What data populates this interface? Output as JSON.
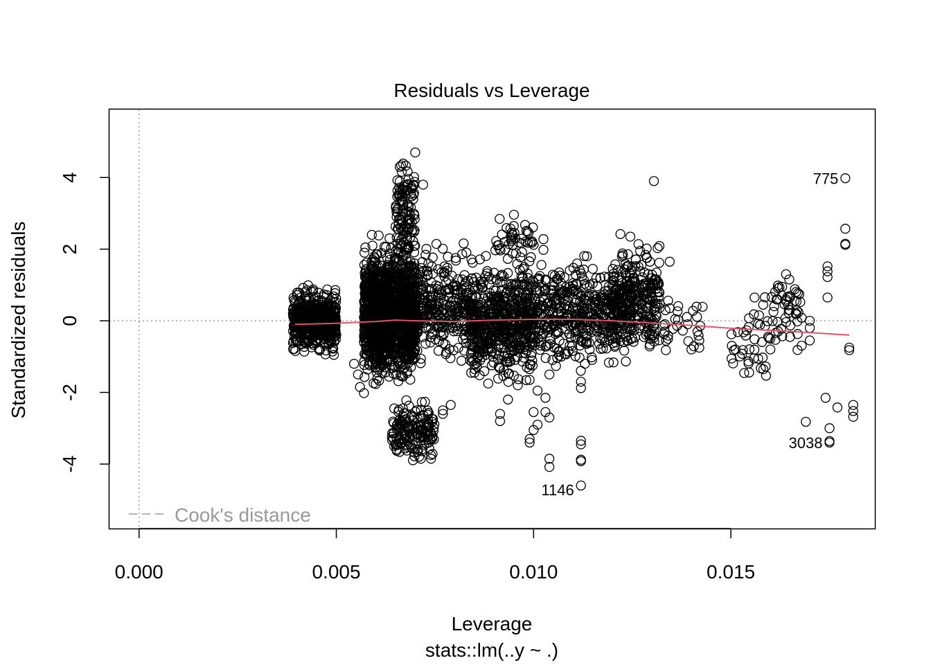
{
  "chart_data": {
    "type": "scatter",
    "title": "Residuals vs Leverage",
    "xlabel": "Leverage",
    "subtitle": "stats::lm(..y ~ .)",
    "ylabel": "Standardized residuals",
    "xlim": [
      -0.00075,
      0.01865
    ],
    "ylim": [
      -5.8,
      5.9
    ],
    "x_ticks": [
      0.0,
      0.005,
      0.01,
      0.015
    ],
    "x_tick_labels": [
      "0.000",
      "0.005",
      "0.010",
      "0.015"
    ],
    "y_ticks": [
      -4,
      -2,
      0,
      2,
      4
    ],
    "y_tick_labels": [
      "-4",
      "-2",
      "0",
      "2",
      "4"
    ],
    "legend": {
      "label": "Cook's distance",
      "position": "bottom-left",
      "color": "#999999"
    },
    "colors": {
      "points": "#000000",
      "smooth": "#DF536B",
      "reference": "#999999"
    },
    "clusters": [
      {
        "x": [
          0.0039,
          0.005
        ],
        "ymin": -1.5,
        "ymax": 1.5,
        "n": 520,
        "sd": 0.55
      },
      {
        "x": [
          0.0057,
          0.007
        ],
        "ymin": -2.0,
        "ymax": 2.4,
        "n": 1500,
        "sd": 0.75
      },
      {
        "x": [
          0.0065,
          0.007
        ],
        "ymin": 1.5,
        "ymax": 4.4,
        "n": 130,
        "sd": 1.0
      },
      {
        "x": [
          0.0064,
          0.0075
        ],
        "ymin": -3.9,
        "ymax": -2.2,
        "n": 160,
        "sd": 1.0
      },
      {
        "x": [
          0.007,
          0.0085
        ],
        "ymin": -1.5,
        "ymax": 2.2,
        "n": 320,
        "sd": 0.8
      },
      {
        "x": [
          0.0084,
          0.01
        ],
        "ymin": -2.0,
        "ymax": 2.0,
        "n": 560,
        "sd": 0.75
      },
      {
        "x": [
          0.009,
          0.01
        ],
        "ymin": 1.5,
        "ymax": 3.1,
        "n": 45,
        "sd": 1.0
      },
      {
        "x": [
          0.01,
          0.0125
        ],
        "ymin": -1.5,
        "ymax": 2.0,
        "n": 480,
        "sd": 0.75
      },
      {
        "x": [
          0.012,
          0.0132
        ],
        "ymin": -1.2,
        "ymax": 2.4,
        "n": 240,
        "sd": 0.8
      },
      {
        "x": [
          0.0132,
          0.0143
        ],
        "ymin": -0.9,
        "ymax": 0.6,
        "n": 28,
        "sd": 1.0
      },
      {
        "x": [
          0.015,
          0.016
        ],
        "ymin": -1.8,
        "ymax": 0.7,
        "n": 40,
        "sd": 1.0
      },
      {
        "x": [
          0.016,
          0.0168
        ],
        "ymin": -0.9,
        "ymax": 1.4,
        "n": 45,
        "sd": 1.0
      }
    ],
    "points": [
      {
        "x": 0.007,
        "y": 4.7
      },
      {
        "x": 0.0072,
        "y": 3.8
      },
      {
        "x": 0.01305,
        "y": 3.9
      },
      {
        "x": 0.0179,
        "y": 3.98
      },
      {
        "x": 0.0179,
        "y": 2.57
      },
      {
        "x": 0.0179,
        "y": 2.15
      },
      {
        "x": 0.0179,
        "y": 2.12
      },
      {
        "x": 0.01745,
        "y": 1.52
      },
      {
        "x": 0.01745,
        "y": 1.38
      },
      {
        "x": 0.01745,
        "y": 1.22
      },
      {
        "x": 0.01745,
        "y": 0.65
      },
      {
        "x": 0.01345,
        "y": 1.65
      },
      {
        "x": 0.0122,
        "y": 2.42
      },
      {
        "x": 0.01245,
        "y": 2.35
      },
      {
        "x": 0.0127,
        "y": 1.95
      },
      {
        "x": 0.01295,
        "y": 1.65
      },
      {
        "x": 0.01345,
        "y": 0.35
      },
      {
        "x": 0.014,
        "y": -0.8
      },
      {
        "x": 0.0156,
        "y": 0.65
      },
      {
        "x": 0.0164,
        "y": 1.3
      },
      {
        "x": 0.0163,
        "y": 0.95
      },
      {
        "x": 0.0165,
        "y": 0.65
      },
      {
        "x": 0.017,
        "y": -0.55
      },
      {
        "x": 0.017,
        "y": 0.0
      },
      {
        "x": 0.017,
        "y": -0.2
      },
      {
        "x": 0.018,
        "y": -0.75
      },
      {
        "x": 0.018,
        "y": -0.82
      },
      {
        "x": 0.0174,
        "y": -2.15
      },
      {
        "x": 0.0177,
        "y": -2.42
      },
      {
        "x": 0.0181,
        "y": -2.35
      },
      {
        "x": 0.0181,
        "y": -2.52
      },
      {
        "x": 0.0181,
        "y": -2.68
      },
      {
        "x": 0.0169,
        "y": -2.82
      },
      {
        "x": 0.0175,
        "y": -3.0
      },
      {
        "x": 0.0175,
        "y": -3.36
      },
      {
        "x": 0.0175,
        "y": -3.4
      },
      {
        "x": 0.0104,
        "y": -3.85
      },
      {
        "x": 0.0104,
        "y": -4.08
      },
      {
        "x": 0.0112,
        "y": -4.6
      },
      {
        "x": 0.0112,
        "y": -3.35
      },
      {
        "x": 0.0112,
        "y": -3.45
      },
      {
        "x": 0.0112,
        "y": -3.88
      },
      {
        "x": 0.0112,
        "y": -3.92
      },
      {
        "x": 0.0112,
        "y": -1.7
      },
      {
        "x": 0.0112,
        "y": -1.88
      },
      {
        "x": 0.01,
        "y": -2.55
      },
      {
        "x": 0.0101,
        "y": -2.9
      },
      {
        "x": 0.01,
        "y": -3.05
      },
      {
        "x": 0.0099,
        "y": -3.3
      },
      {
        "x": 0.0099,
        "y": -3.4
      },
      {
        "x": 0.0103,
        "y": -2.15
      },
      {
        "x": 0.0103,
        "y": -2.55
      },
      {
        "x": 0.0104,
        "y": -2.7
      },
      {
        "x": 0.0101,
        "y": -1.95
      },
      {
        "x": 0.0099,
        "y": -1.65
      },
      {
        "x": 0.0079,
        "y": -2.35
      },
      {
        "x": 0.0077,
        "y": -2.5
      },
      {
        "x": 0.0077,
        "y": -2.6
      },
      {
        "x": 0.0074,
        "y": -3.75
      },
      {
        "x": 0.0074,
        "y": -3.85
      },
      {
        "x": 0.00935,
        "y": -2.2
      },
      {
        "x": 0.00915,
        "y": -2.6
      },
      {
        "x": 0.00915,
        "y": -2.8
      },
      {
        "x": 0.0096,
        "y": -1.8
      },
      {
        "x": 0.0059,
        "y": 2.4
      },
      {
        "x": 0.01025,
        "y": 2.28
      },
      {
        "x": 0.01025,
        "y": 1.98
      },
      {
        "x": 0.01135,
        "y": 1.8
      },
      {
        "x": 0.0115,
        "y": 1.45
      },
      {
        "x": 0.0111,
        "y": 1.6
      },
      {
        "x": 0.01065,
        "y": 1.35
      },
      {
        "x": 0.01,
        "y": 2.12
      },
      {
        "x": 0.00545,
        "y": -1.2
      },
      {
        "x": 0.0056,
        "y": -1.85
      },
      {
        "x": 0.0057,
        "y": -2.02
      },
      {
        "x": 0.00555,
        "y": -1.5
      },
      {
        "x": 0.0085,
        "y": -1.45
      },
      {
        "x": 0.00885,
        "y": -1.75
      },
      {
        "x": 0.0107,
        "y": -1.0
      },
      {
        "x": 0.0113,
        "y": -1.2
      },
      {
        "x": 0.0104,
        "y": -1.5
      },
      {
        "x": 0.0142,
        "y": -0.55
      },
      {
        "x": 0.0142,
        "y": -0.75
      },
      {
        "x": 0.016,
        "y": -0.5
      },
      {
        "x": 0.016,
        "y": -0.8
      },
      {
        "x": 0.0162,
        "y": -0.3
      },
      {
        "x": 0.0165,
        "y": -0.45
      }
    ],
    "smooth_line": {
      "x": [
        0.00395,
        0.005,
        0.006,
        0.0065,
        0.007,
        0.008,
        0.009,
        0.01,
        0.011,
        0.012,
        0.013,
        0.014,
        0.015,
        0.016,
        0.017,
        0.018
      ],
      "y": [
        -0.1,
        -0.07,
        -0.02,
        0.02,
        0.0,
        -0.02,
        0.02,
        0.04,
        0.04,
        0.0,
        -0.06,
        -0.13,
        -0.21,
        -0.27,
        -0.33,
        -0.4
      ]
    },
    "annotations": [
      {
        "label": "775",
        "x": 0.0179,
        "y": 3.98,
        "side": "left"
      },
      {
        "label": "3038",
        "x": 0.0175,
        "y": -3.4,
        "side": "left"
      },
      {
        "label": "1146",
        "x": 0.0112,
        "y": -4.6,
        "side": "left"
      }
    ]
  }
}
